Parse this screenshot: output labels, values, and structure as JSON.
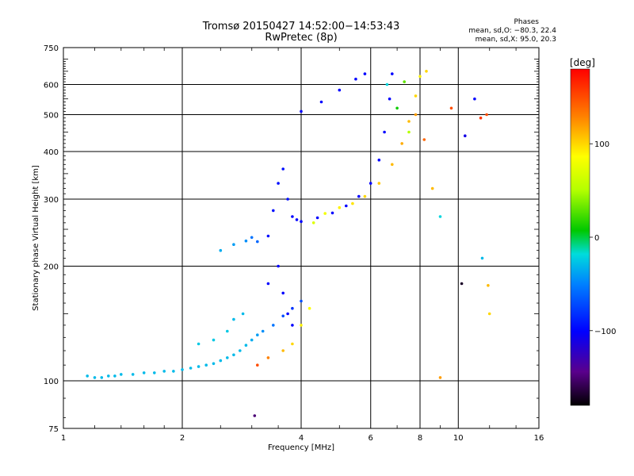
{
  "chart_data": {
    "type": "scatter",
    "title": "Tromsø 20150427 14:52:00−14:53:43",
    "subtitle": "RwPretec (8p)",
    "xlabel": "Frequency [MHz]",
    "ylabel": "Stationary phase Virtual Height [km]",
    "x_scale": "log",
    "y_scale": "log",
    "xlim": [
      1,
      16
    ],
    "ylim": [
      75,
      750
    ],
    "xticks": [
      1,
      2,
      4,
      6,
      8,
      10,
      16
    ],
    "xtick_labels": [
      "1",
      "2",
      "4",
      "6",
      "8",
      "10",
      "16"
    ],
    "yticks": [
      75,
      100,
      200,
      300,
      400,
      500,
      600,
      750
    ],
    "ytick_labels": [
      "75",
      "100",
      "200",
      "300",
      "400",
      "500",
      "600",
      "750"
    ],
    "grid": true,
    "phases_legend": {
      "title": "Phases",
      "line_o": "mean, sd,O: −80.3, 22.4",
      "line_x": "mean, sd,X:  95.0, 20.3"
    },
    "colorbar": {
      "label": "[deg]",
      "range": [
        -180,
        180
      ],
      "ticks": [
        100,
        0,
        -100
      ],
      "tick_labels": [
        "100",
        "0",
        "−100"
      ]
    },
    "series": [
      {
        "values": [
          [
            1.15,
            103,
            -30
          ],
          [
            1.2,
            102,
            -30
          ],
          [
            1.25,
            102,
            -30
          ],
          [
            1.3,
            103,
            -30
          ],
          [
            1.35,
            103,
            -30
          ],
          [
            1.4,
            104,
            -30
          ],
          [
            1.5,
            104,
            -30
          ],
          [
            1.6,
            105,
            -30
          ],
          [
            1.7,
            105,
            -30
          ],
          [
            1.8,
            106,
            -30
          ],
          [
            1.9,
            106,
            -30
          ],
          [
            2.0,
            107,
            -30
          ],
          [
            2.1,
            108,
            -30
          ],
          [
            2.2,
            109,
            -30
          ],
          [
            2.3,
            110,
            -30
          ],
          [
            2.4,
            111,
            -30
          ],
          [
            2.5,
            113,
            -30
          ],
          [
            2.6,
            115,
            -30
          ],
          [
            2.7,
            117,
            -30
          ],
          [
            2.8,
            120,
            -30
          ],
          [
            2.9,
            124,
            -30
          ],
          [
            3.0,
            128,
            -35
          ],
          [
            3.1,
            132,
            -40
          ],
          [
            3.2,
            135,
            -45
          ],
          [
            3.4,
            140,
            -55
          ],
          [
            3.6,
            148,
            -70
          ],
          [
            3.8,
            155,
            -80
          ],
          [
            4.0,
            162,
            -70
          ]
        ]
      },
      {
        "values": [
          [
            2.2,
            125,
            -25
          ],
          [
            2.4,
            128,
            -25
          ],
          [
            2.6,
            135,
            -25
          ],
          [
            2.7,
            145,
            -30
          ],
          [
            2.85,
            150,
            -30
          ],
          [
            2.5,
            220,
            -35
          ],
          [
            2.7,
            228,
            -40
          ],
          [
            2.9,
            233,
            -45
          ],
          [
            3.0,
            238,
            -55
          ],
          [
            3.1,
            232,
            -60
          ]
        ]
      },
      {
        "values": [
          [
            3.3,
            240,
            -95
          ],
          [
            3.4,
            280,
            -95
          ],
          [
            3.5,
            330,
            -95
          ],
          [
            3.6,
            360,
            -95
          ],
          [
            3.7,
            300,
            -95
          ],
          [
            3.8,
            270,
            -100
          ],
          [
            3.9,
            265,
            -100
          ],
          [
            4.0,
            262,
            -100
          ],
          [
            4.4,
            268,
            -100
          ],
          [
            4.8,
            276,
            -100
          ],
          [
            5.2,
            288,
            -100
          ],
          [
            5.6,
            305,
            -100
          ],
          [
            6.0,
            330,
            -100
          ],
          [
            6.3,
            380,
            -100
          ],
          [
            6.5,
            450,
            -100
          ],
          [
            6.7,
            550,
            -100
          ],
          [
            6.8,
            640,
            -100
          ]
        ]
      },
      {
        "values": [
          [
            3.3,
            180,
            -100
          ],
          [
            3.5,
            200,
            -100
          ],
          [
            3.6,
            170,
            -100
          ],
          [
            3.7,
            150,
            -100
          ],
          [
            3.8,
            140,
            -100
          ],
          [
            4.0,
            510,
            -100
          ],
          [
            4.5,
            540,
            -100
          ],
          [
            5.0,
            580,
            -100
          ],
          [
            5.5,
            620,
            -100
          ],
          [
            5.8,
            640,
            -100
          ]
        ]
      },
      {
        "values": [
          [
            3.1,
            110,
            150
          ],
          [
            3.3,
            115,
            130
          ],
          [
            3.6,
            120,
            110
          ],
          [
            3.8,
            125,
            100
          ],
          [
            4.0,
            140,
            90
          ],
          [
            4.2,
            155,
            85
          ],
          [
            4.3,
            260,
            70
          ],
          [
            4.6,
            275,
            80
          ],
          [
            5.0,
            285,
            90
          ],
          [
            5.4,
            292,
            95
          ],
          [
            5.8,
            305,
            100
          ],
          [
            6.3,
            330,
            105
          ],
          [
            6.8,
            370,
            110
          ],
          [
            7.2,
            420,
            115
          ],
          [
            7.5,
            480,
            110
          ],
          [
            7.8,
            560,
            100
          ],
          [
            8.0,
            630,
            90
          ],
          [
            8.3,
            650,
            100
          ]
        ]
      },
      {
        "values": [
          [
            6.6,
            600,
            -20
          ],
          [
            7.0,
            520,
            10
          ],
          [
            7.3,
            610,
            30
          ],
          [
            7.5,
            450,
            50
          ],
          [
            7.8,
            500,
            120
          ],
          [
            8.2,
            430,
            140
          ],
          [
            8.6,
            320,
            110
          ],
          [
            9.0,
            270,
            -20
          ],
          [
            9.6,
            520,
            150
          ],
          [
            10.4,
            440,
            -110
          ],
          [
            11.0,
            550,
            -100
          ],
          [
            11.4,
            490,
            160
          ],
          [
            11.8,
            500,
            150
          ],
          [
            11.5,
            210,
            -30
          ],
          [
            10.2,
            180,
            -170
          ],
          [
            11.9,
            178,
            110
          ],
          [
            12.0,
            150,
            100
          ],
          [
            9.0,
            102,
            120
          ],
          [
            3.05,
            81,
            -150
          ]
        ]
      }
    ]
  }
}
